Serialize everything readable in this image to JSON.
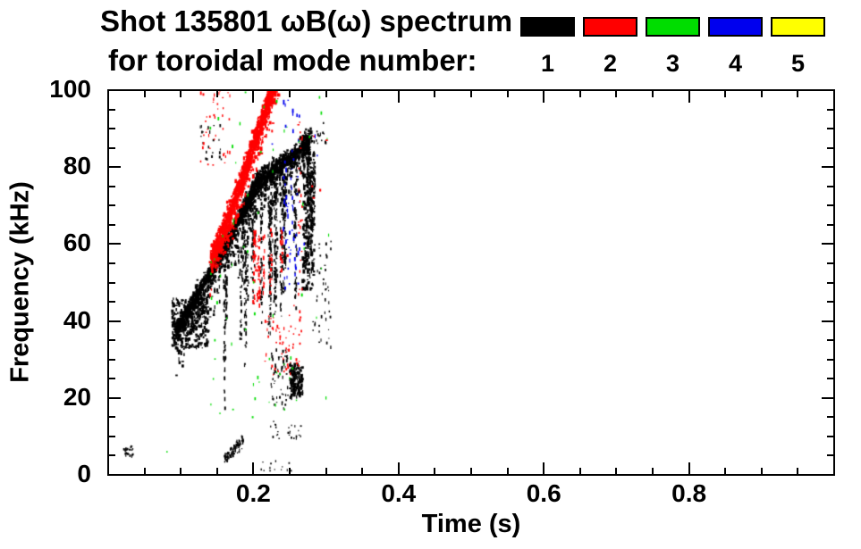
{
  "chart_data": {
    "type": "scatter",
    "title": "Shot 135801 ωB(ω) spectrum",
    "subtitle": "for toroidal mode number:",
    "xlabel": "Time (s)",
    "ylabel": "Frequency (kHz)",
    "xlim": [
      0,
      1.0
    ],
    "ylim": [
      0,
      100
    ],
    "x_ticks": [
      {
        "value": 0.2,
        "label": "0.2"
      },
      {
        "value": 0.4,
        "label": "0.4"
      },
      {
        "value": 0.6,
        "label": "0.6"
      },
      {
        "value": 0.8,
        "label": "0.8"
      }
    ],
    "y_ticks": [
      {
        "value": 0,
        "label": "0"
      },
      {
        "value": 20,
        "label": "20"
      },
      {
        "value": 40,
        "label": "40"
      },
      {
        "value": 60,
        "label": "60"
      },
      {
        "value": 80,
        "label": "80"
      },
      {
        "value": 100,
        "label": "100"
      }
    ],
    "x_minor_step": 0.05,
    "y_minor_step": 5,
    "grid": false,
    "legend": {
      "position": "top-right",
      "entries": [
        {
          "label": "1",
          "color": "#000000"
        },
        {
          "label": "2",
          "color": "#ff0000"
        },
        {
          "label": "3",
          "color": "#00dd00"
        },
        {
          "label": "4",
          "color": "#0000ee"
        },
        {
          "label": "5",
          "color": "#ffff00"
        }
      ]
    },
    "series": [
      {
        "name": "n=1",
        "color": "#000000",
        "features": [
          {
            "kind": "band",
            "path": [
              [
                0.092,
                37
              ],
              [
                0.115,
                44
              ],
              [
                0.14,
                52
              ],
              [
                0.165,
                61
              ],
              [
                0.19,
                70
              ],
              [
                0.205,
                76
              ],
              [
                0.225,
                79
              ],
              [
                0.25,
                82
              ],
              [
                0.277,
                87
              ]
            ],
            "sigma": 2.2,
            "count": 2400,
            "tail": 13,
            "tail_frac": 0.3,
            "dash": [
              3,
              5
            ]
          },
          {
            "kind": "cloud",
            "t": [
              0.088,
              0.138
            ],
            "f": [
              33,
              46
            ],
            "count": 320,
            "dash": [
              3,
              4
            ]
          },
          {
            "kind": "columns",
            "top_path": [
              [
                0.15,
                54
              ],
              [
                0.19,
                66
              ],
              [
                0.22,
                75
              ],
              [
                0.25,
                78
              ],
              [
                0.285,
                84
              ]
            ],
            "t": [
              0.155,
              0.285
            ],
            "cols": 30,
            "len": [
              8,
              38
            ],
            "density": 1.1,
            "dash": [
              2,
              5
            ]
          },
          {
            "kind": "cloud",
            "t": [
              0.021,
              0.035
            ],
            "f": [
              4.5,
              7.5
            ],
            "count": 28,
            "dash": [
              2,
              3
            ]
          },
          {
            "kind": "band",
            "path": [
              [
                0.161,
                4
              ],
              [
                0.186,
                9.5
              ]
            ],
            "sigma": 1.2,
            "count": 70,
            "tail": 2,
            "tail_frac": 0.2,
            "dash": [
              2,
              4
            ]
          },
          {
            "kind": "cloud",
            "t": [
              0.21,
              0.252
            ],
            "f": [
              0.5,
              4
            ],
            "count": 14,
            "dash": [
              2,
              3
            ]
          },
          {
            "kind": "cloud",
            "t": [
              0.224,
              0.248
            ],
            "f": [
              17,
              33
            ],
            "count": 60,
            "dash": [
              2,
              4
            ]
          },
          {
            "kind": "cloud",
            "t": [
              0.25,
              0.268
            ],
            "f": [
              20,
              29
            ],
            "count": 140,
            "dash": [
              3,
              5
            ]
          },
          {
            "kind": "cloud",
            "t": [
              0.222,
              0.268
            ],
            "f": [
              9,
              14
            ],
            "count": 25,
            "dash": [
              2,
              3
            ]
          },
          {
            "kind": "cloud",
            "t": [
              0.28,
              0.307
            ],
            "f": [
              33,
              61
            ],
            "count": 45,
            "dash": [
              2,
              4
            ]
          },
          {
            "kind": "cloud",
            "t": [
              0.126,
              0.158
            ],
            "f": [
              82,
              91
            ],
            "count": 22,
            "dash": [
              2,
              4
            ]
          },
          {
            "kind": "cloud",
            "t": [
              0.268,
              0.284
            ],
            "f": [
              48,
              90
            ],
            "count": 280,
            "dash": [
              3,
              5
            ]
          },
          {
            "kind": "cloud",
            "t": [
              0.285,
              0.3
            ],
            "f": [
              86,
              92
            ],
            "count": 12,
            "dash": [
              2,
              4
            ]
          }
        ]
      },
      {
        "name": "n=2",
        "color": "#ff0000",
        "features": [
          {
            "kind": "band",
            "path": [
              [
                0.141,
                56
              ],
              [
                0.158,
                63
              ],
              [
                0.176,
                72
              ],
              [
                0.194,
                82
              ],
              [
                0.21,
                91
              ],
              [
                0.224,
                99
              ],
              [
                0.238,
                107
              ]
            ],
            "sigma": 2.8,
            "count": 1800,
            "tail": 9,
            "tail_frac": 0.25,
            "dash": [
              3,
              5
            ]
          },
          {
            "kind": "cloud",
            "t": [
              0.127,
              0.168
            ],
            "f": [
              80,
              100
            ],
            "count": 40,
            "dash": [
              2,
              4
            ]
          },
          {
            "kind": "columns",
            "top_path": [
              [
                0.2,
                66
              ],
              [
                0.24,
                66
              ]
            ],
            "t": [
              0.2,
              0.242
            ],
            "cols": 9,
            "len": [
              6,
              22
            ],
            "density": 1.0,
            "dash": [
              2,
              5
            ]
          },
          {
            "kind": "cloud",
            "t": [
              0.215,
              0.268
            ],
            "f": [
              26,
              42
            ],
            "count": 55,
            "dash": [
              2,
              4
            ]
          },
          {
            "kind": "cloud",
            "t": [
              0.262,
              0.268
            ],
            "f": [
              40,
              92
            ],
            "count": 28,
            "dash": [
              2,
              4
            ]
          },
          {
            "kind": "points",
            "pts": [
              [
                0.262,
                91
              ],
              [
                0.284,
                88
              ],
              [
                0.292,
                74
              ],
              [
                0.281,
                75
              ],
              [
                0.283,
                72
              ],
              [
                0.247,
                57
              ],
              [
                0.256,
                44
              ],
              [
                0.263,
                29.5
              ],
              [
                0.26,
                29
              ],
              [
                0.301,
                87
              ]
            ],
            "dash": [
              3,
              4
            ]
          }
        ]
      },
      {
        "name": "n=3",
        "color": "#00dd00",
        "features": [
          {
            "kind": "cloud",
            "t": [
              0.125,
              0.305
            ],
            "f": [
              18,
              100
            ],
            "count": 60,
            "dash": [
              2,
              4
            ]
          },
          {
            "kind": "points",
            "pts": [
              [
                0.081,
                6
              ],
              [
                0.154,
                16
              ],
              [
                0.172,
                17
              ],
              [
                0.199,
                15
              ],
              [
                0.243,
                17
              ],
              [
                0.147,
                35
              ],
              [
                0.17,
                34
              ],
              [
                0.3,
                20
              ]
            ],
            "dash": [
              2,
              4
            ]
          }
        ]
      },
      {
        "name": "n=4",
        "color": "#0000ee",
        "features": [
          {
            "kind": "cloud",
            "t": [
              0.241,
              0.264
            ],
            "f": [
              48,
              99
            ],
            "count": 60,
            "dash": [
              2,
              6
            ]
          },
          {
            "kind": "points",
            "pts": [
              [
                0.285,
                88
              ],
              [
                0.288,
                83
              ],
              [
                0.226,
                86
              ],
              [
                0.27,
                60
              ]
            ],
            "dash": [
              2,
              5
            ]
          }
        ]
      },
      {
        "name": "n=5",
        "color": "#ffff00",
        "features": []
      }
    ]
  }
}
